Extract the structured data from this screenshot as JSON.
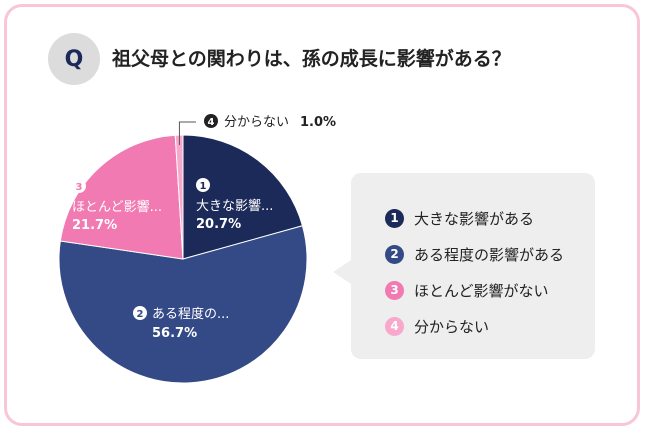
{
  "question": {
    "badge": "Q",
    "text": "祖父母との関わりは、孫の成長に影響がある？"
  },
  "colors": {
    "frame_border": "#f8c6d4",
    "slice_1": "#1c2a5a",
    "slice_2": "#344a86",
    "slice_3": "#f07ab1",
    "slice_4": "#f7a8cc"
  },
  "chart_data": {
    "type": "pie",
    "slices": [
      {
        "num": "1",
        "label": "大きな影響がある",
        "value": 20.7,
        "pie_label": "大きな影響...",
        "value_label": "20.7%"
      },
      {
        "num": "2",
        "label": "ある程度の影響がある",
        "value": 56.7,
        "pie_label": "ある程度の...",
        "value_label": "56.7%"
      },
      {
        "num": "3",
        "label": "ほとんど影響がない",
        "value": 21.7,
        "pie_label": "ほとんど影響...",
        "value_label": "21.7%"
      },
      {
        "num": "4",
        "label": "分からない",
        "value": 1.0,
        "pie_label": "分からない",
        "value_label": "1.0%"
      }
    ],
    "legend_placement": "right"
  }
}
